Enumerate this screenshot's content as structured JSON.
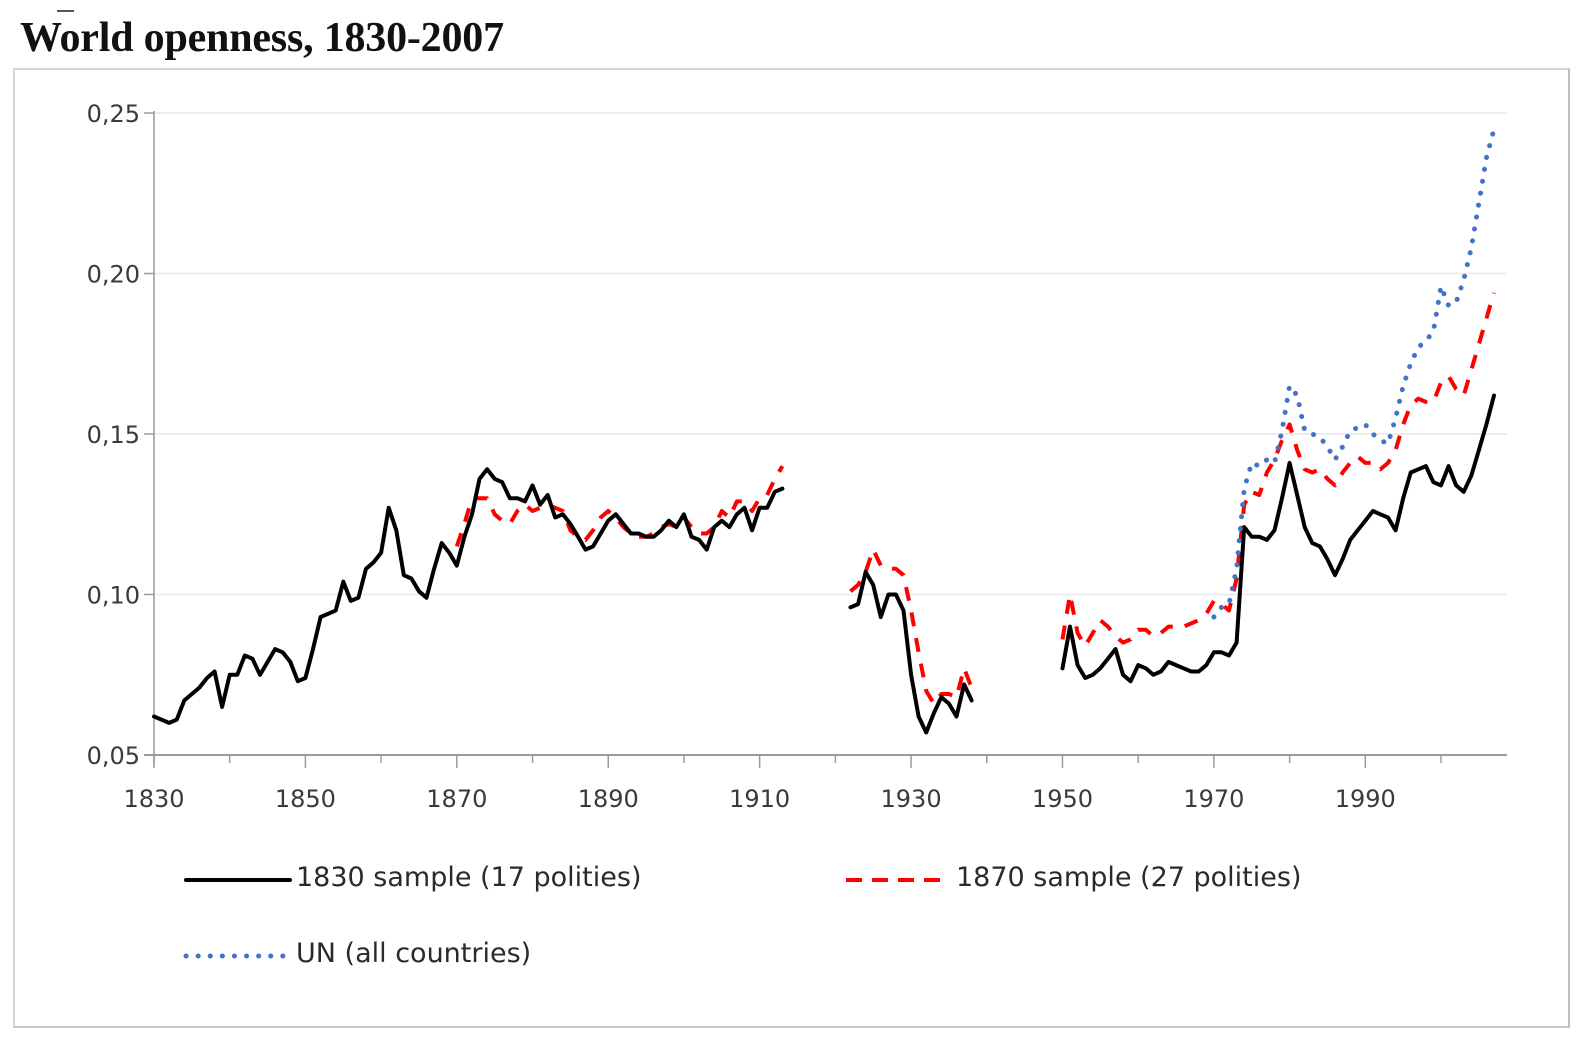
{
  "chart_data": {
    "type": "line",
    "title": "World openness, 1830-2007",
    "xlabel": "",
    "ylabel": "",
    "xlim": [
      1830,
      2007
    ],
    "ylim": [
      0.05,
      0.25
    ],
    "grid": true,
    "legend_position": "bottom",
    "x_tick_labels": [
      "1830",
      "1850",
      "1870",
      "1890",
      "1910",
      "1930",
      "1950",
      "1970",
      "1990"
    ],
    "x_ticks": [
      1830,
      1850,
      1870,
      1890,
      1910,
      1930,
      1950,
      1970,
      1990
    ],
    "y_tick_labels": [
      "0,05",
      "0,10",
      "0,15",
      "0,20",
      "0,25"
    ],
    "y_ticks": [
      0.05,
      0.1,
      0.15,
      0.2,
      0.25
    ],
    "series": [
      {
        "name": "1830 sample (17 polities)",
        "style": "solid",
        "color": "#000000",
        "segments": [
          {
            "x": [
              1830,
              1831,
              1832,
              1833,
              1834,
              1835,
              1836,
              1837,
              1838,
              1839,
              1840,
              1841,
              1842,
              1843,
              1844,
              1845,
              1846,
              1847,
              1848,
              1849,
              1850,
              1851,
              1852,
              1853,
              1854,
              1855,
              1856,
              1857,
              1858,
              1859,
              1860,
              1861,
              1862,
              1863,
              1864,
              1865,
              1866,
              1867,
              1868,
              1869,
              1870,
              1871,
              1872,
              1873,
              1874,
              1875,
              1876,
              1877,
              1878,
              1879,
              1880,
              1881,
              1882,
              1883,
              1884,
              1885,
              1886,
              1887,
              1888,
              1889,
              1890,
              1891,
              1892,
              1893,
              1894,
              1895,
              1896,
              1897,
              1898,
              1899,
              1900,
              1901,
              1902,
              1903,
              1904,
              1905,
              1906,
              1907,
              1908,
              1909,
              1910,
              1911,
              1912,
              1913
            ],
            "y": [
              0.062,
              0.061,
              0.06,
              0.061,
              0.067,
              0.069,
              0.071,
              0.074,
              0.076,
              0.065,
              0.075,
              0.075,
              0.081,
              0.08,
              0.075,
              0.079,
              0.083,
              0.082,
              0.079,
              0.073,
              0.074,
              0.083,
              0.093,
              0.094,
              0.095,
              0.104,
              0.098,
              0.099,
              0.108,
              0.11,
              0.113,
              0.127,
              0.12,
              0.106,
              0.105,
              0.101,
              0.099,
              0.108,
              0.116,
              0.113,
              0.109,
              0.118,
              0.125,
              0.136,
              0.139,
              0.136,
              0.135,
              0.13,
              0.13,
              0.129,
              0.134,
              0.128,
              0.131,
              0.124,
              0.125,
              0.122,
              0.118,
              0.114,
              0.115,
              0.119,
              0.123,
              0.125,
              0.122,
              0.119,
              0.119,
              0.118,
              0.118,
              0.12,
              0.123,
              0.121,
              0.125,
              0.118,
              0.117,
              0.114,
              0.121,
              0.123,
              0.121,
              0.125,
              0.127,
              0.12,
              0.127,
              0.127,
              0.132,
              0.133
            ]
          },
          {
            "x": [
              1922,
              1923,
              1924,
              1925,
              1926,
              1927,
              1928,
              1929,
              1930,
              1931,
              1932,
              1933,
              1934,
              1935,
              1936,
              1937,
              1938
            ],
            "y": [
              0.096,
              0.097,
              0.107,
              0.103,
              0.093,
              0.1,
              0.1,
              0.095,
              0.075,
              0.062,
              0.057,
              0.063,
              0.068,
              0.066,
              0.062,
              0.072,
              0.067
            ]
          },
          {
            "x": [
              1950,
              1951,
              1952,
              1953,
              1954,
              1955,
              1956,
              1957,
              1958,
              1959,
              1960,
              1961,
              1962,
              1963,
              1964,
              1965,
              1966,
              1967,
              1968,
              1969,
              1970,
              1971,
              1972,
              1973,
              1974,
              1975,
              1976,
              1977,
              1978,
              1979,
              1980,
              1981,
              1982,
              1983,
              1984,
              1985,
              1986,
              1987,
              1988,
              1989,
              1990,
              1991,
              1992,
              1993,
              1994,
              1995,
              1996,
              1997,
              1998,
              1999,
              2000,
              2001,
              2002,
              2003,
              2004,
              2005,
              2006,
              2007
            ],
            "y": [
              0.077,
              0.09,
              0.078,
              0.074,
              0.075,
              0.077,
              0.08,
              0.083,
              0.075,
              0.073,
              0.078,
              0.077,
              0.075,
              0.076,
              0.079,
              0.078,
              0.077,
              0.076,
              0.076,
              0.078,
              0.082,
              0.082,
              0.081,
              0.085,
              0.121,
              0.118,
              0.118,
              0.117,
              0.12,
              0.13,
              0.141,
              0.131,
              0.121,
              0.116,
              0.115,
              0.111,
              0.106,
              0.111,
              0.117,
              0.12,
              0.123,
              0.126,
              0.125,
              0.124,
              0.12,
              0.13,
              0.138,
              0.139,
              0.14,
              0.135,
              0.134,
              0.14,
              0.134,
              0.132,
              0.137,
              0.145,
              0.153,
              0.162
            ]
          }
        ]
      },
      {
        "name": "1870 sample (27 polities)",
        "style": "dashed",
        "color": "#ff0000",
        "segments": [
          {
            "x": [
              1870,
              1871,
              1872,
              1873,
              1874,
              1875,
              1876,
              1877,
              1878,
              1879,
              1880,
              1881,
              1882,
              1883,
              1884,
              1885,
              1886,
              1887,
              1888,
              1889,
              1890,
              1891,
              1892,
              1893,
              1894,
              1895,
              1896,
              1897,
              1898,
              1899,
              1900,
              1901,
              1902,
              1903,
              1904,
              1905,
              1906,
              1907,
              1908,
              1909,
              1910,
              1911,
              1912,
              1913
            ],
            "y": [
              0.115,
              0.122,
              0.13,
              0.13,
              0.13,
              0.125,
              0.123,
              0.122,
              0.126,
              0.128,
              0.126,
              0.127,
              0.128,
              0.127,
              0.126,
              0.12,
              0.118,
              0.117,
              0.12,
              0.124,
              0.126,
              0.124,
              0.121,
              0.119,
              0.118,
              0.118,
              0.119,
              0.121,
              0.122,
              0.121,
              0.124,
              0.121,
              0.119,
              0.119,
              0.121,
              0.126,
              0.124,
              0.129,
              0.129,
              0.126,
              0.13,
              0.131,
              0.136,
              0.14
            ]
          },
          {
            "x": [
              1922,
              1923,
              1924,
              1925,
              1926,
              1927,
              1928,
              1929,
              1930,
              1931,
              1932,
              1933,
              1934,
              1935,
              1936,
              1937,
              1938
            ],
            "y": [
              0.101,
              0.103,
              0.107,
              0.114,
              0.109,
              0.108,
              0.108,
              0.106,
              0.095,
              0.082,
              0.07,
              0.066,
              0.069,
              0.069,
              0.068,
              0.077,
              0.071
            ]
          },
          {
            "x": [
              1950,
              1951,
              1952,
              1953,
              1954,
              1955,
              1956,
              1957,
              1958,
              1959,
              1960,
              1961,
              1962,
              1963,
              1964,
              1965,
              1966,
              1967,
              1968,
              1969,
              1970,
              1971,
              1972,
              1973,
              1974,
              1975,
              1976,
              1977,
              1978,
              1979,
              1980,
              1981,
              1982,
              1983,
              1984,
              1985,
              1986,
              1987,
              1988,
              1989,
              1990,
              1991,
              1992,
              1993,
              1994,
              1995,
              1996,
              1997,
              1998,
              1999,
              2000,
              2001,
              2002,
              2003,
              2004,
              2005,
              2006,
              2007
            ],
            "y": [
              0.086,
              0.1,
              0.088,
              0.084,
              0.088,
              0.092,
              0.09,
              0.087,
              0.085,
              0.086,
              0.089,
              0.089,
              0.087,
              0.088,
              0.09,
              0.09,
              0.09,
              0.091,
              0.092,
              0.094,
              0.098,
              0.097,
              0.095,
              0.105,
              0.128,
              0.132,
              0.131,
              0.138,
              0.142,
              0.148,
              0.153,
              0.145,
              0.139,
              0.138,
              0.139,
              0.136,
              0.134,
              0.138,
              0.141,
              0.143,
              0.141,
              0.141,
              0.139,
              0.141,
              0.145,
              0.153,
              0.159,
              0.161,
              0.16,
              0.16,
              0.166,
              0.168,
              0.164,
              0.162,
              0.17,
              0.178,
              0.186,
              0.194
            ]
          }
        ]
      },
      {
        "name": "UN (all countries)",
        "style": "dotted",
        "color": "#4472c4",
        "segments": [
          {
            "x": [
              1970,
              1971,
              1972,
              1973,
              1974,
              1975,
              1976,
              1977,
              1978,
              1979,
              1980,
              1981,
              1982,
              1983,
              1984,
              1985,
              1986,
              1987,
              1988,
              1989,
              1990,
              1991,
              1992,
              1993,
              1994,
              1995,
              1996,
              1997,
              1998,
              1999,
              2000,
              2001,
              2002,
              2003,
              2004,
              2005,
              2006,
              2007
            ],
            "y": [
              0.093,
              0.096,
              0.097,
              0.108,
              0.133,
              0.141,
              0.14,
              0.142,
              0.141,
              0.151,
              0.165,
              0.162,
              0.151,
              0.15,
              0.149,
              0.146,
              0.142,
              0.146,
              0.151,
              0.152,
              0.153,
              0.15,
              0.148,
              0.147,
              0.155,
              0.165,
              0.172,
              0.177,
              0.179,
              0.182,
              0.196,
              0.19,
              0.191,
              0.198,
              0.208,
              0.222,
              0.236,
              0.245
            ]
          }
        ]
      }
    ]
  }
}
